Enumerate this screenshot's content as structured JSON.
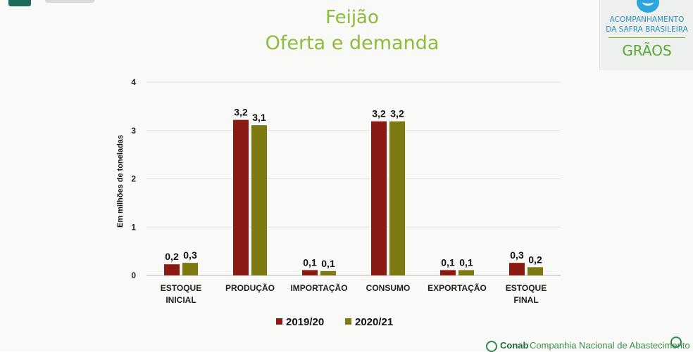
{
  "header": {
    "title_line1": "Feijão",
    "title_line2": "Oferta e demanda"
  },
  "badge": {
    "line1": "ACOMPANHAMENTO",
    "line2": "DA SAFRA BRASILEIRA",
    "line3": "GRÃOS"
  },
  "footer": {
    "brand": "Conab",
    "text": "Companhia Nacional de Abastecimento"
  },
  "colors": {
    "series_2019": "#8b1a13",
    "series_2020": "#7d7a12",
    "title": "#8dbb3b"
  },
  "chart_data": {
    "type": "bar",
    "title": "",
    "xlabel": "",
    "ylabel": "Em milhões de toneladas",
    "ylim": [
      0,
      4
    ],
    "yticks": [
      "0",
      "1",
      "2",
      "3",
      "4"
    ],
    "grid": true,
    "legend_position": "bottom",
    "categories": [
      [
        "ESTOQUE",
        "INICIAL"
      ],
      [
        "PRODUÇÃO"
      ],
      [
        "IMPORTAÇÃO"
      ],
      [
        "CONSUMO"
      ],
      [
        "EXPORTAÇÃO"
      ],
      [
        "ESTOQUE",
        "FINAL"
      ]
    ],
    "series": [
      {
        "name": "2019/20",
        "values": [
          0.23,
          3.22,
          0.11,
          3.19,
          0.11,
          0.26
        ],
        "labels": [
          "0,2",
          "3,2",
          "0,1",
          "3,2",
          "0,1",
          "0,3"
        ]
      },
      {
        "name": "2020/21",
        "values": [
          0.26,
          3.11,
          0.09,
          3.19,
          0.11,
          0.17
        ],
        "labels": [
          "0,3",
          "3,1",
          "0,1",
          "3,2",
          "0,1",
          "0,2"
        ]
      }
    ]
  }
}
